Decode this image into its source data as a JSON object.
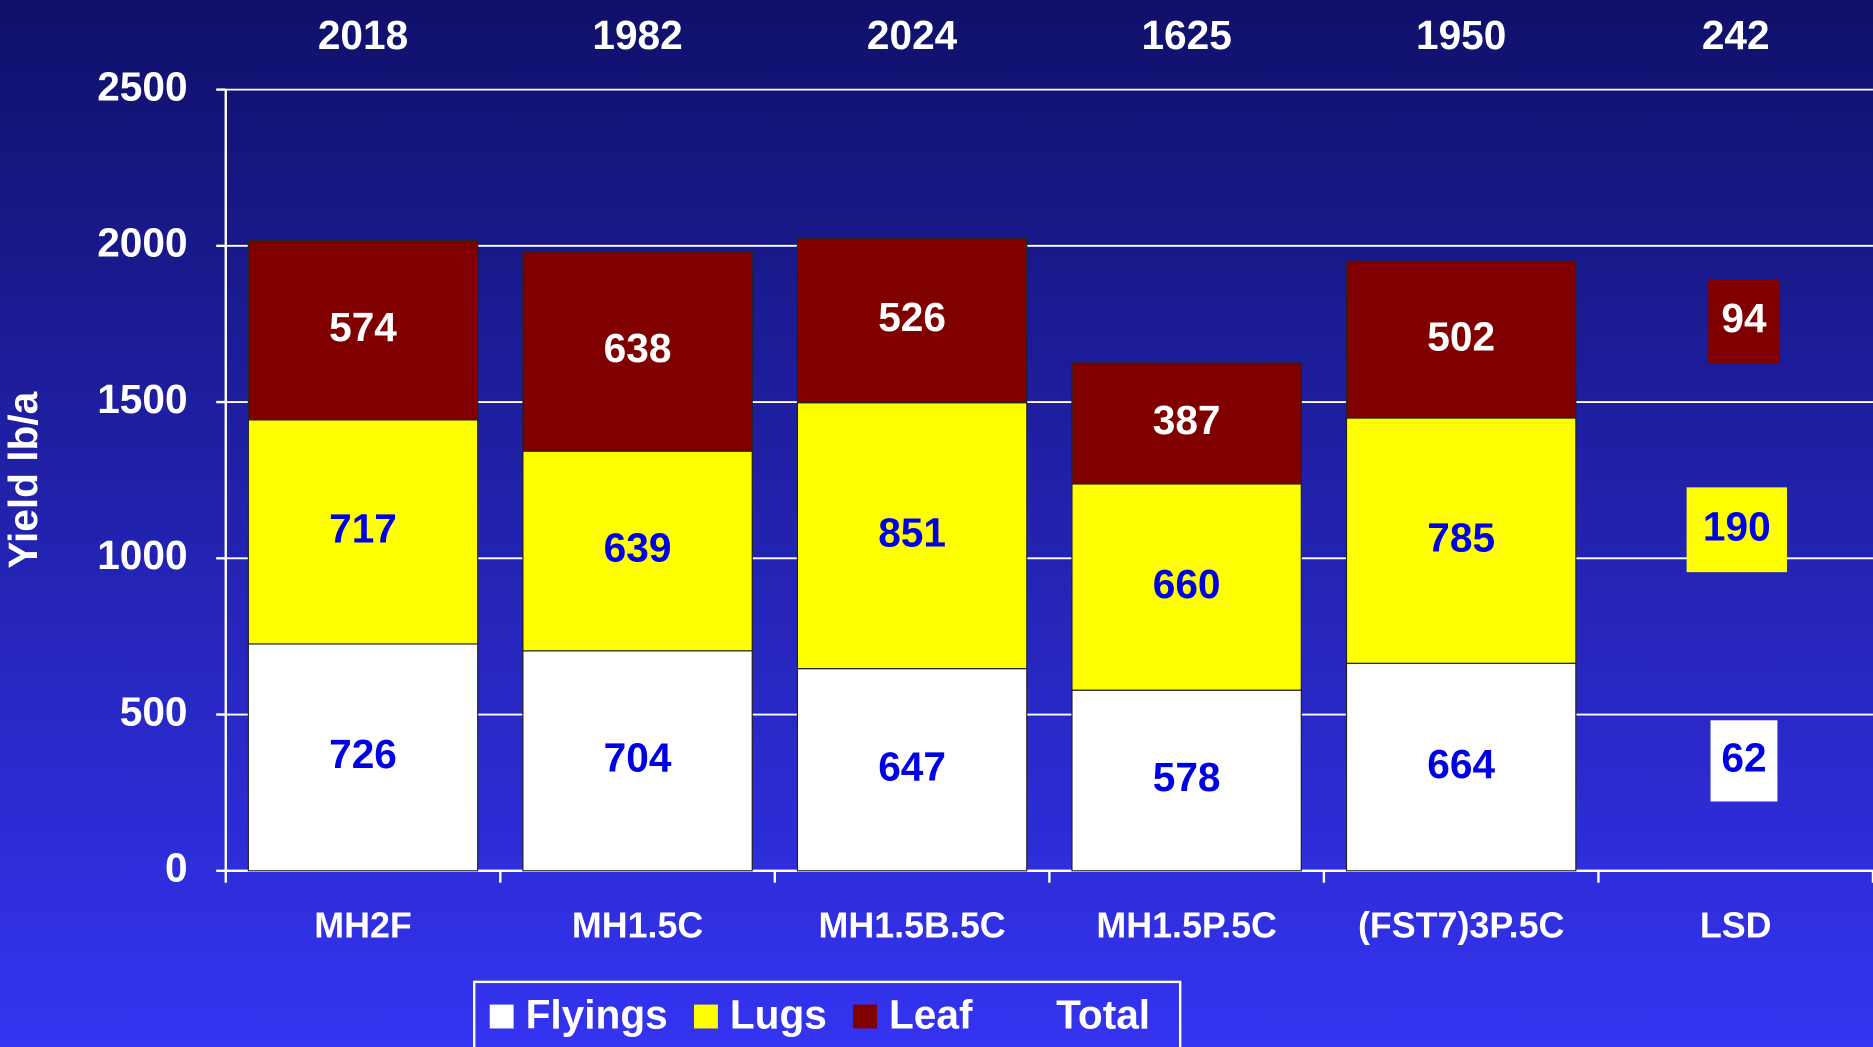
{
  "chart_data": {
    "type": "stacked_bar",
    "y_label": "Yield lb/a",
    "categories": [
      "MH2F",
      "MH1.5C",
      "MH1.5B.5C",
      "MH1.5P.5C",
      "(FST7)3P.5C",
      "LSD"
    ],
    "series": [
      {
        "name": "Flyings",
        "color": "#ffffff",
        "values": [
          726,
          704,
          647,
          578,
          664,
          null
        ]
      },
      {
        "name": "Lugs",
        "color": "#ffff00",
        "values": [
          717,
          639,
          851,
          660,
          785,
          null
        ]
      },
      {
        "name": "Leaf",
        "color": "#800000",
        "values": [
          574,
          638,
          526,
          387,
          502,
          null
        ]
      },
      {
        "name": "Total",
        "values": [
          2018,
          1982,
          2024,
          1625,
          1950,
          242
        ]
      }
    ],
    "lsd_values": [
      62,
      190,
      94
    ],
    "ylim": [
      0,
      2500
    ],
    "yticks": [
      0,
      500,
      1000,
      1500,
      2000,
      2500
    ],
    "grid": true
  }
}
